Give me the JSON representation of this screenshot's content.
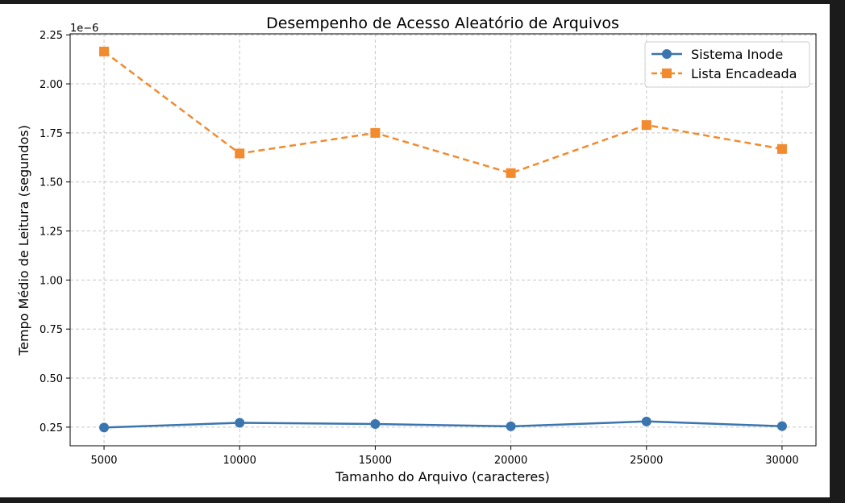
{
  "chart_data": {
    "type": "line",
    "title": "Desempenho de Acesso Aleatório de Arquivos",
    "xlabel": "Tamanho do Arquivo (caracteres)",
    "ylabel": "Tempo Médio de Leitura (segundos)",
    "y_offset_label": "1e−6",
    "x": [
      5000,
      10000,
      15000,
      20000,
      25000,
      30000
    ],
    "x_tick_labels": [
      "5000",
      "10000",
      "15000",
      "20000",
      "25000",
      "30000"
    ],
    "y_ticks": [
      0.25,
      0.5,
      0.75,
      1.0,
      1.25,
      1.5,
      1.75,
      2.0,
      2.25
    ],
    "y_tick_labels": [
      "0.25",
      "0.50",
      "0.75",
      "1.00",
      "1.25",
      "1.50",
      "1.75",
      "2.00",
      "2.25"
    ],
    "xlim": [
      3750,
      31250
    ],
    "ylim": [
      0.155,
      2.255
    ],
    "grid": true,
    "legend_position": "top-right",
    "series": [
      {
        "name": "Sistema Inode",
        "color": "#3a75b0",
        "marker": "circle",
        "line_style": "solid",
        "values": [
          0.248,
          0.272,
          0.266,
          0.254,
          0.279,
          0.255
        ]
      },
      {
        "name": "Lista Encadeada",
        "color": "#f28a2e",
        "marker": "square",
        "line_style": "dashed",
        "values": [
          2.165,
          1.645,
          1.75,
          1.545,
          1.79,
          1.668
        ]
      }
    ]
  }
}
